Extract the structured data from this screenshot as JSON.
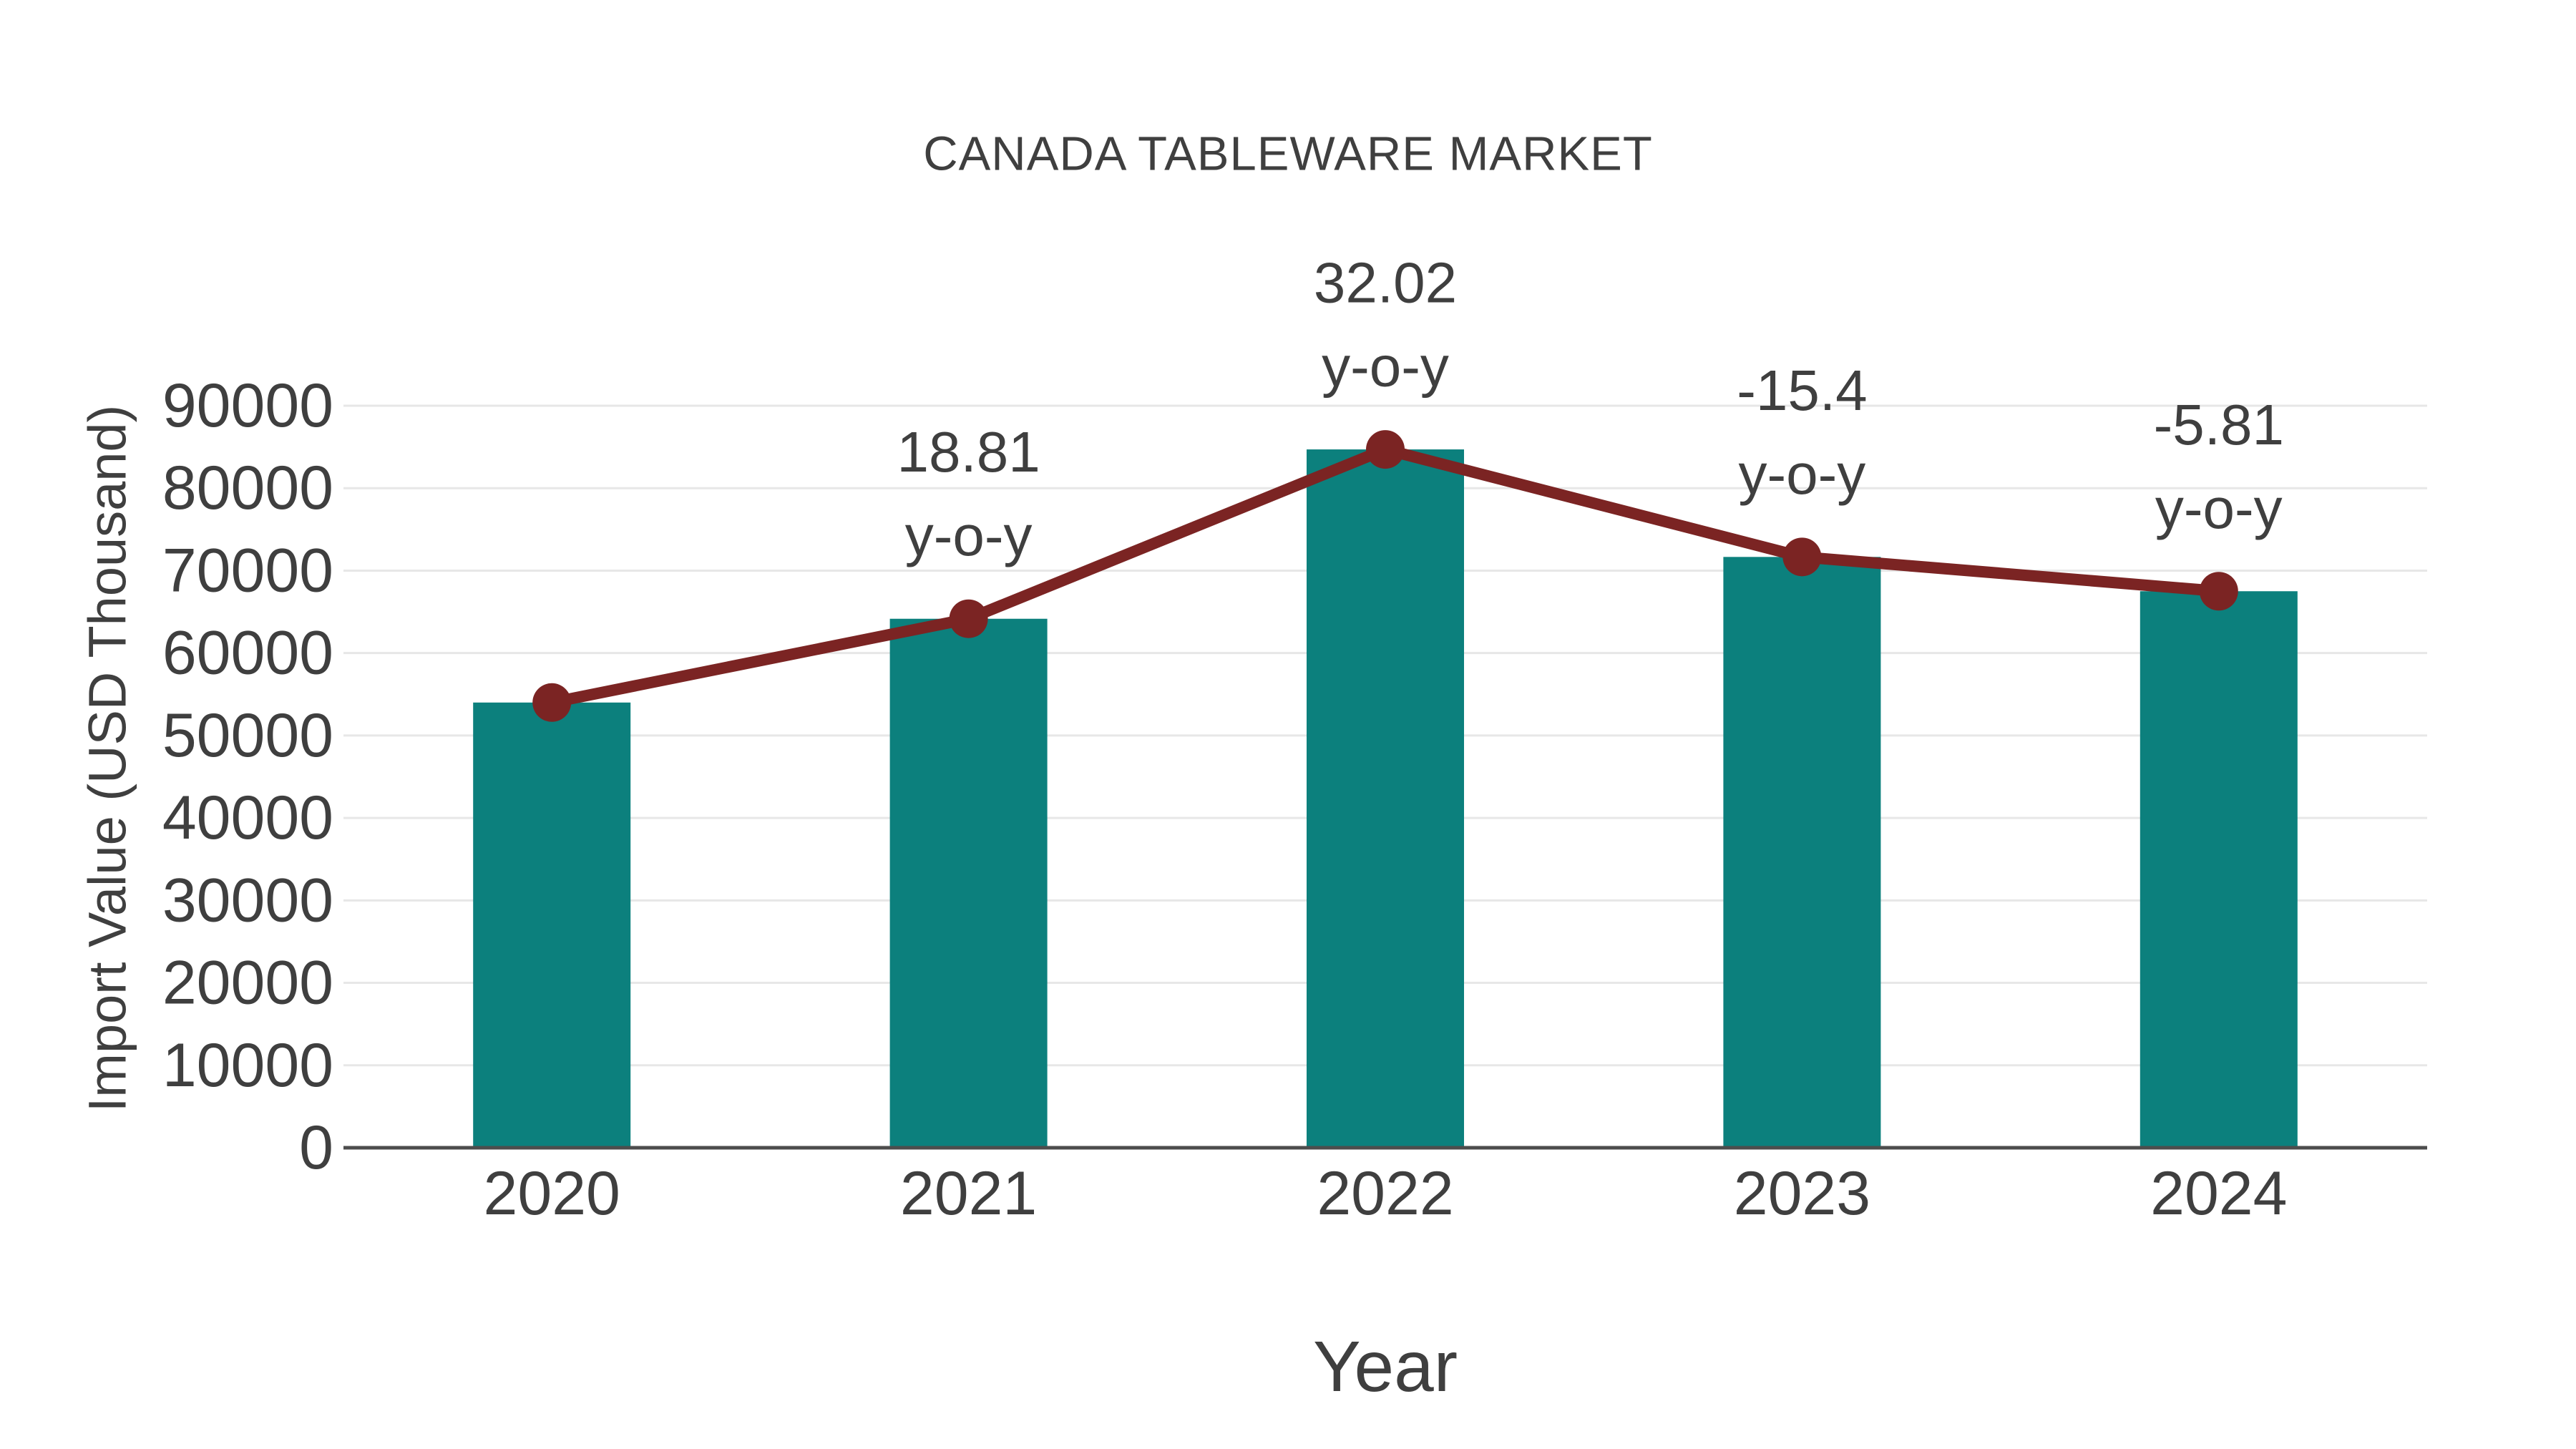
{
  "chart_data": {
    "type": "bar+line",
    "title": "CANADA TABLEWARE MARKET",
    "xlabel": "Year",
    "ylabel": "Import Value (USD Thousand)",
    "categories": [
      "2020",
      "2021",
      "2022",
      "2023",
      "2024"
    ],
    "series": [
      {
        "name": "import-value-bars",
        "type": "bar",
        "color": "#0c807d",
        "values": [
          54000,
          64160,
          84700,
          71660,
          67500
        ]
      },
      {
        "name": "yoy-trend-line",
        "type": "line",
        "color": "#7b2423",
        "values": [
          54000,
          64160,
          84700,
          71660,
          67500
        ],
        "yoy_percent": [
          null,
          18.81,
          32.02,
          -15.4,
          -5.81
        ]
      }
    ],
    "annotations": [
      {
        "index": 1,
        "value_label": "18.81",
        "suffix_label": "y-o-y"
      },
      {
        "index": 2,
        "value_label": "32.02",
        "suffix_label": "y-o-y"
      },
      {
        "index": 3,
        "value_label": "-15.4",
        "suffix_label": "y-o-y"
      },
      {
        "index": 4,
        "value_label": "-5.81",
        "suffix_label": "y-o-y"
      }
    ],
    "ylim": [
      0,
      90000
    ],
    "yticks": [
      0,
      10000,
      20000,
      30000,
      40000,
      50000,
      60000,
      70000,
      80000,
      90000
    ],
    "grid": "horizontal",
    "legend_position": "none",
    "colors": {
      "bar": "#0c807d",
      "line": "#7b2423",
      "marker": "#7b2423",
      "gridline": "#e7e7e7",
      "axis_line": "#4d4d4d",
      "text": "#3f3f3f",
      "background": "#ffffff"
    }
  }
}
